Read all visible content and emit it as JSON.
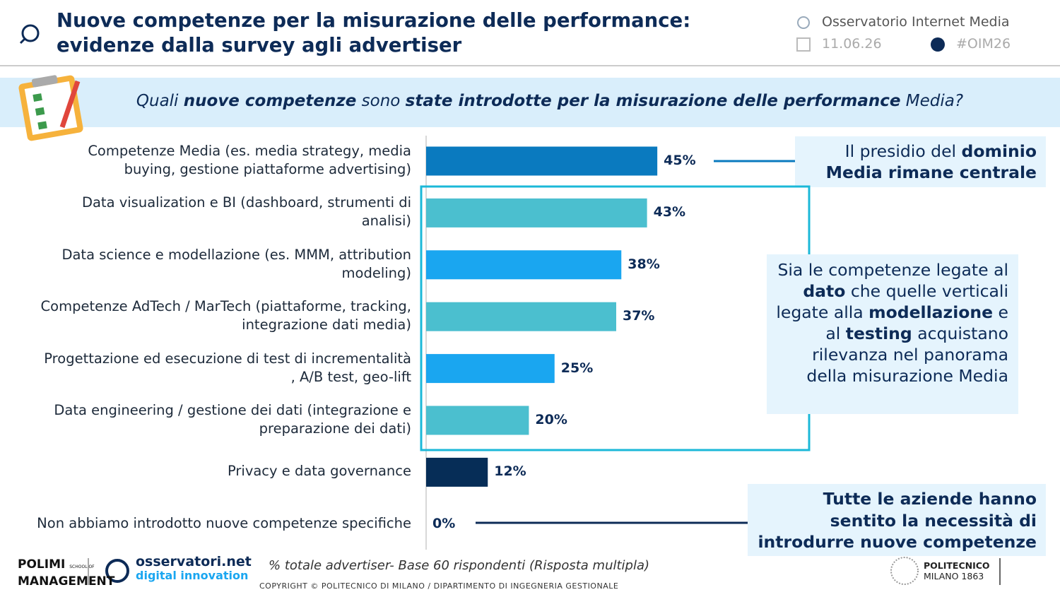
{
  "header": {
    "title": "Nuove competenze per la misurazione delle performance: evidenze dalla survey agli advertiser",
    "brand": "Osservatorio Internet Media",
    "date": "11.06.26",
    "hashtag": "#OIM26"
  },
  "question": [
    {
      "text": "Quali ",
      "bold": false
    },
    {
      "text": "nuove competenze",
      "bold": true
    },
    {
      "text": " sono ",
      "bold": false
    },
    {
      "text": "state introdotte per la misurazione delle performance",
      "bold": true
    },
    {
      "text": " Media?",
      "bold": false
    }
  ],
  "chart_data": {
    "type": "bar",
    "orientation": "horizontal",
    "categories": [
      "Competenze Media (es. media strategy, media buying, gestione piattaforme advertising)",
      "Data visualization e BI (dashboard, strumenti di analisi)",
      "Data science e modellazione (es. MMM, attribution modeling)",
      "Competenze AdTech / MarTech (piattaforme, tracking, integrazione dati media)",
      "Progettazione ed esecuzione di test di incrementalità , A/B test, geo-lift",
      "Data engineering / gestione dei dati (integrazione e preparazione dei dati)",
      "Privacy e data governance",
      "Non abbiamo introdotto nuove competenze specifiche"
    ],
    "values": [
      45,
      43,
      38,
      37,
      25,
      20,
      12,
      0
    ],
    "value_labels": [
      "45%",
      "43%",
      "38%",
      "37%",
      "25%",
      "20%",
      "12%",
      "0%"
    ],
    "colors": [
      "#0a7abf",
      "#4bbfcf",
      "#1aa6f0",
      "#4bbfcf",
      "#1aa6f0",
      "#4bbfcf",
      "#062d57",
      "#062d57"
    ]
  },
  "callouts": [
    [
      {
        "text": "Il presidio del ",
        "bold": false
      },
      {
        "text": "dominio Media rimane centrale",
        "bold": true
      }
    ],
    [
      {
        "text": "Sia le competenze legate al ",
        "bold": false
      },
      {
        "text": "dato",
        "bold": true
      },
      {
        "text": " che quelle verticali legate alla ",
        "bold": false
      },
      {
        "text": "modellazione",
        "bold": true
      },
      {
        "text": " e al ",
        "bold": false
      },
      {
        "text": "testing",
        "bold": true
      },
      {
        "text": " acquistano rilevanza nel panorama della misurazione Media",
        "bold": false
      }
    ],
    [
      {
        "text": "Tutte le aziende hanno sentito la necessità di introdurre nuove competenze",
        "bold": true
      }
    ]
  ],
  "footer": {
    "note": "% totale advertiser- Base 60 rispondenti (Risposta multipla)",
    "copyright": "COPYRIGHT © POLITECNICO DI MILANO / DIPARTIMENTO DI INGEGNERIA GESTIONALE",
    "polimi": [
      "POLIMI",
      "SCHOOL OF",
      "MANAGEMENT"
    ],
    "osservatori": [
      "osservatori.net",
      "digital innovation"
    ],
    "politecnico": [
      "POLITECNICO",
      "MILANO 1863"
    ]
  }
}
